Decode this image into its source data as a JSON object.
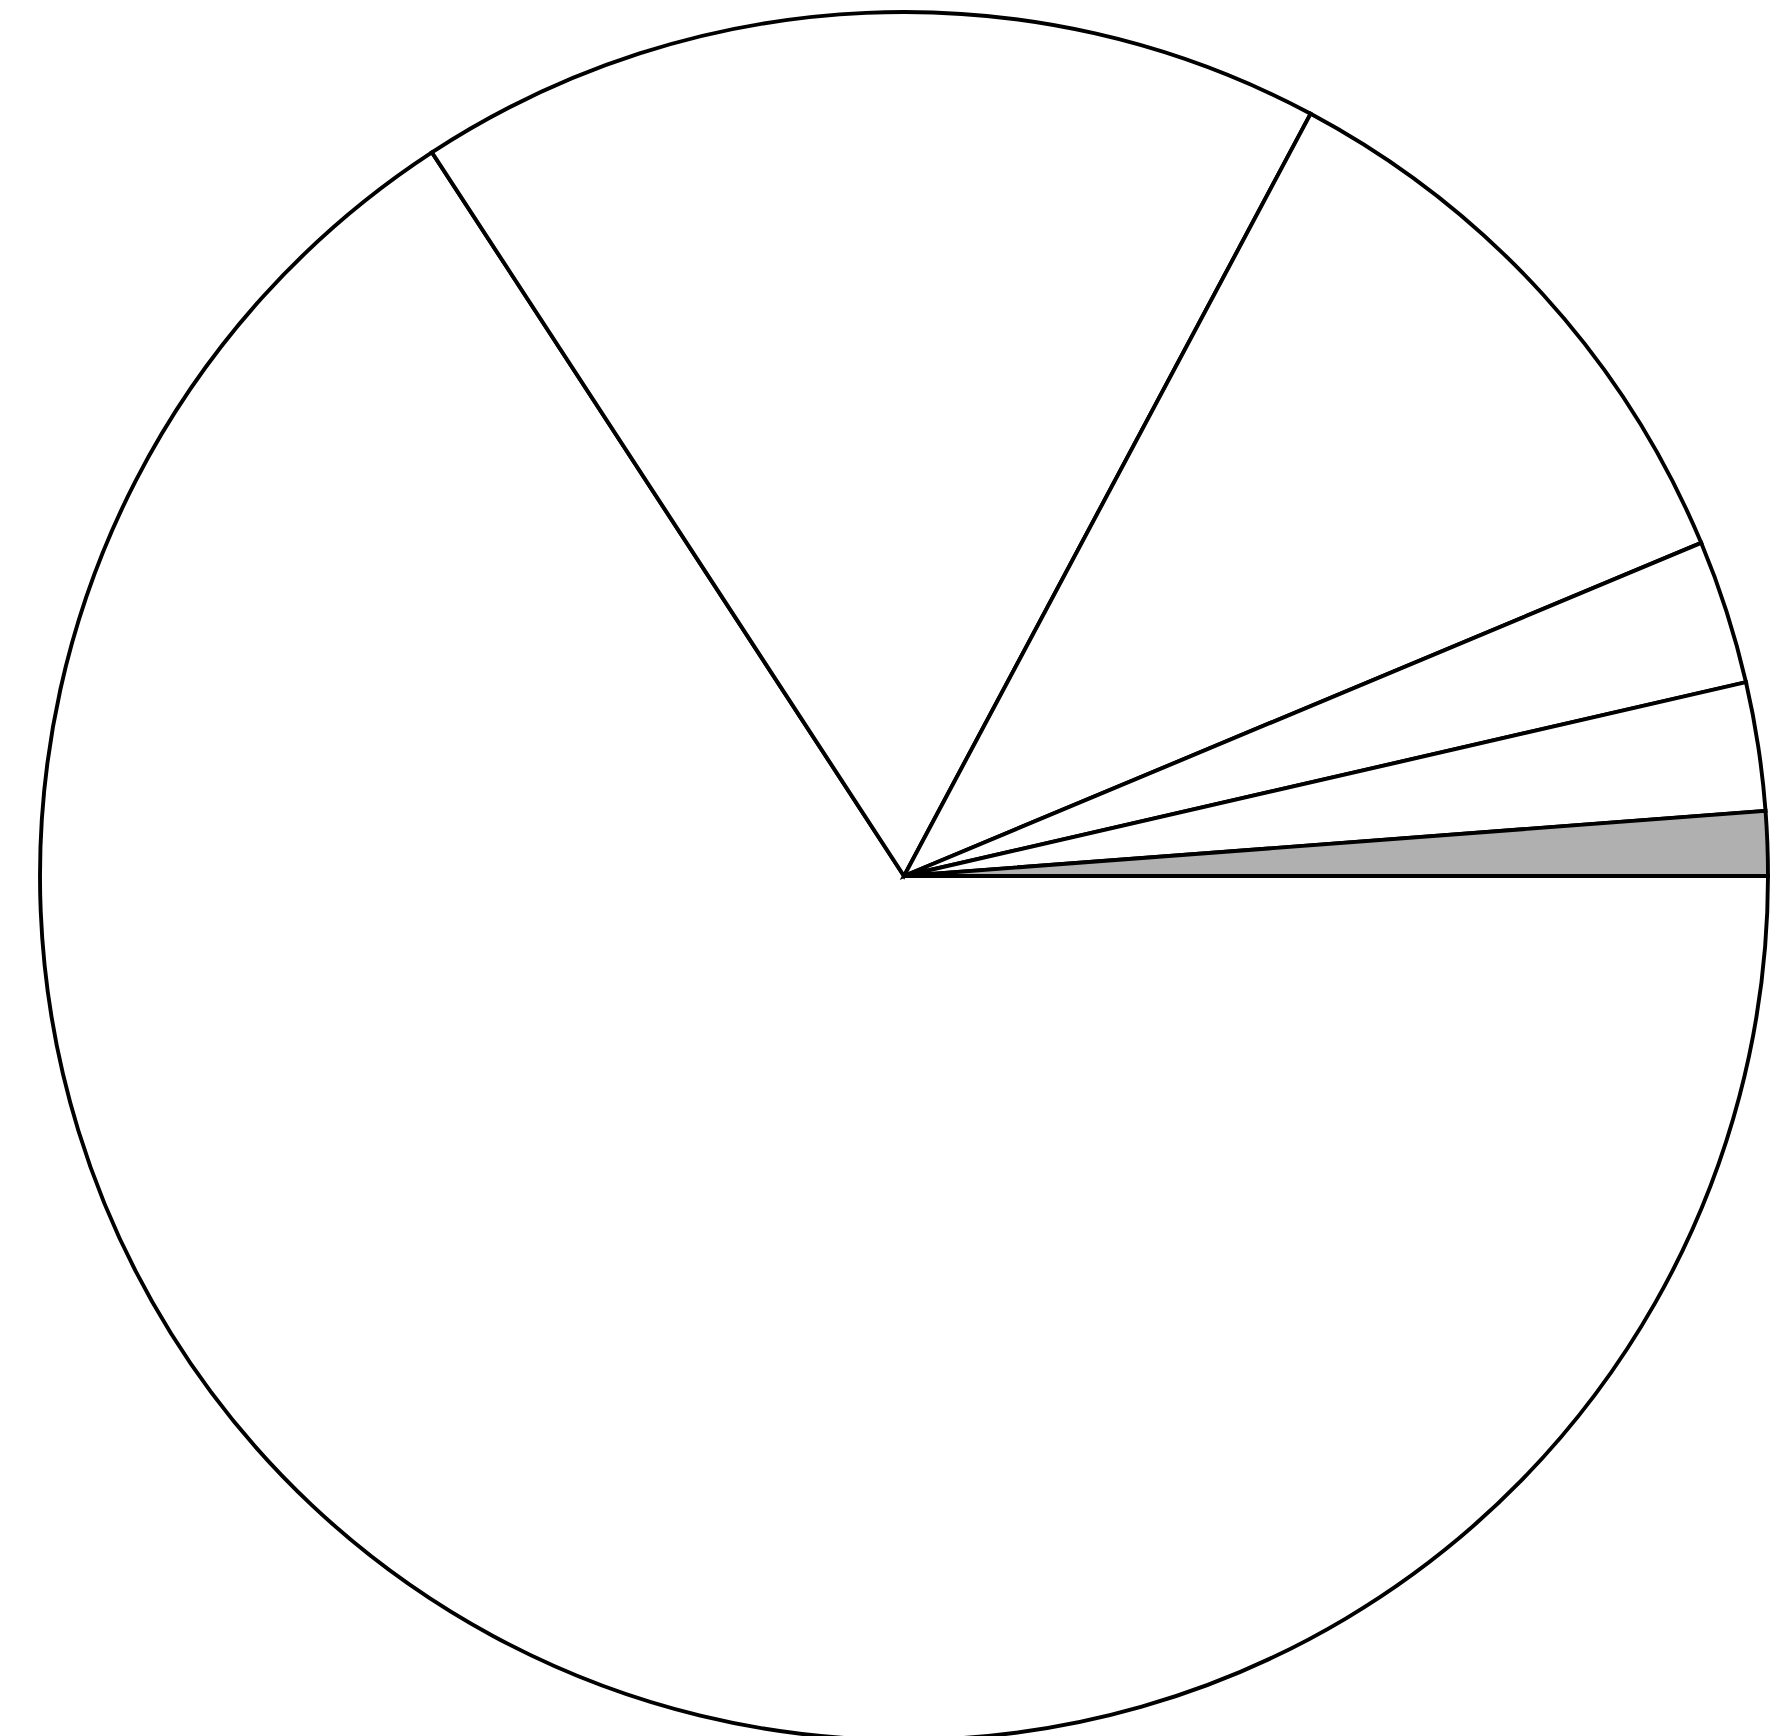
{
  "chart_data": {
    "type": "pie",
    "categories": [
      null,
      null,
      null,
      null,
      null,
      null
    ],
    "values": [
      65.8,
      17.0,
      10.9,
      2.7,
      2.4,
      1.2
    ],
    "colors": [
      "#ffffff",
      "#ffffff",
      "#ffffff",
      "#ffffff",
      "#ffffff",
      "#b0b0b0"
    ]
  }
}
